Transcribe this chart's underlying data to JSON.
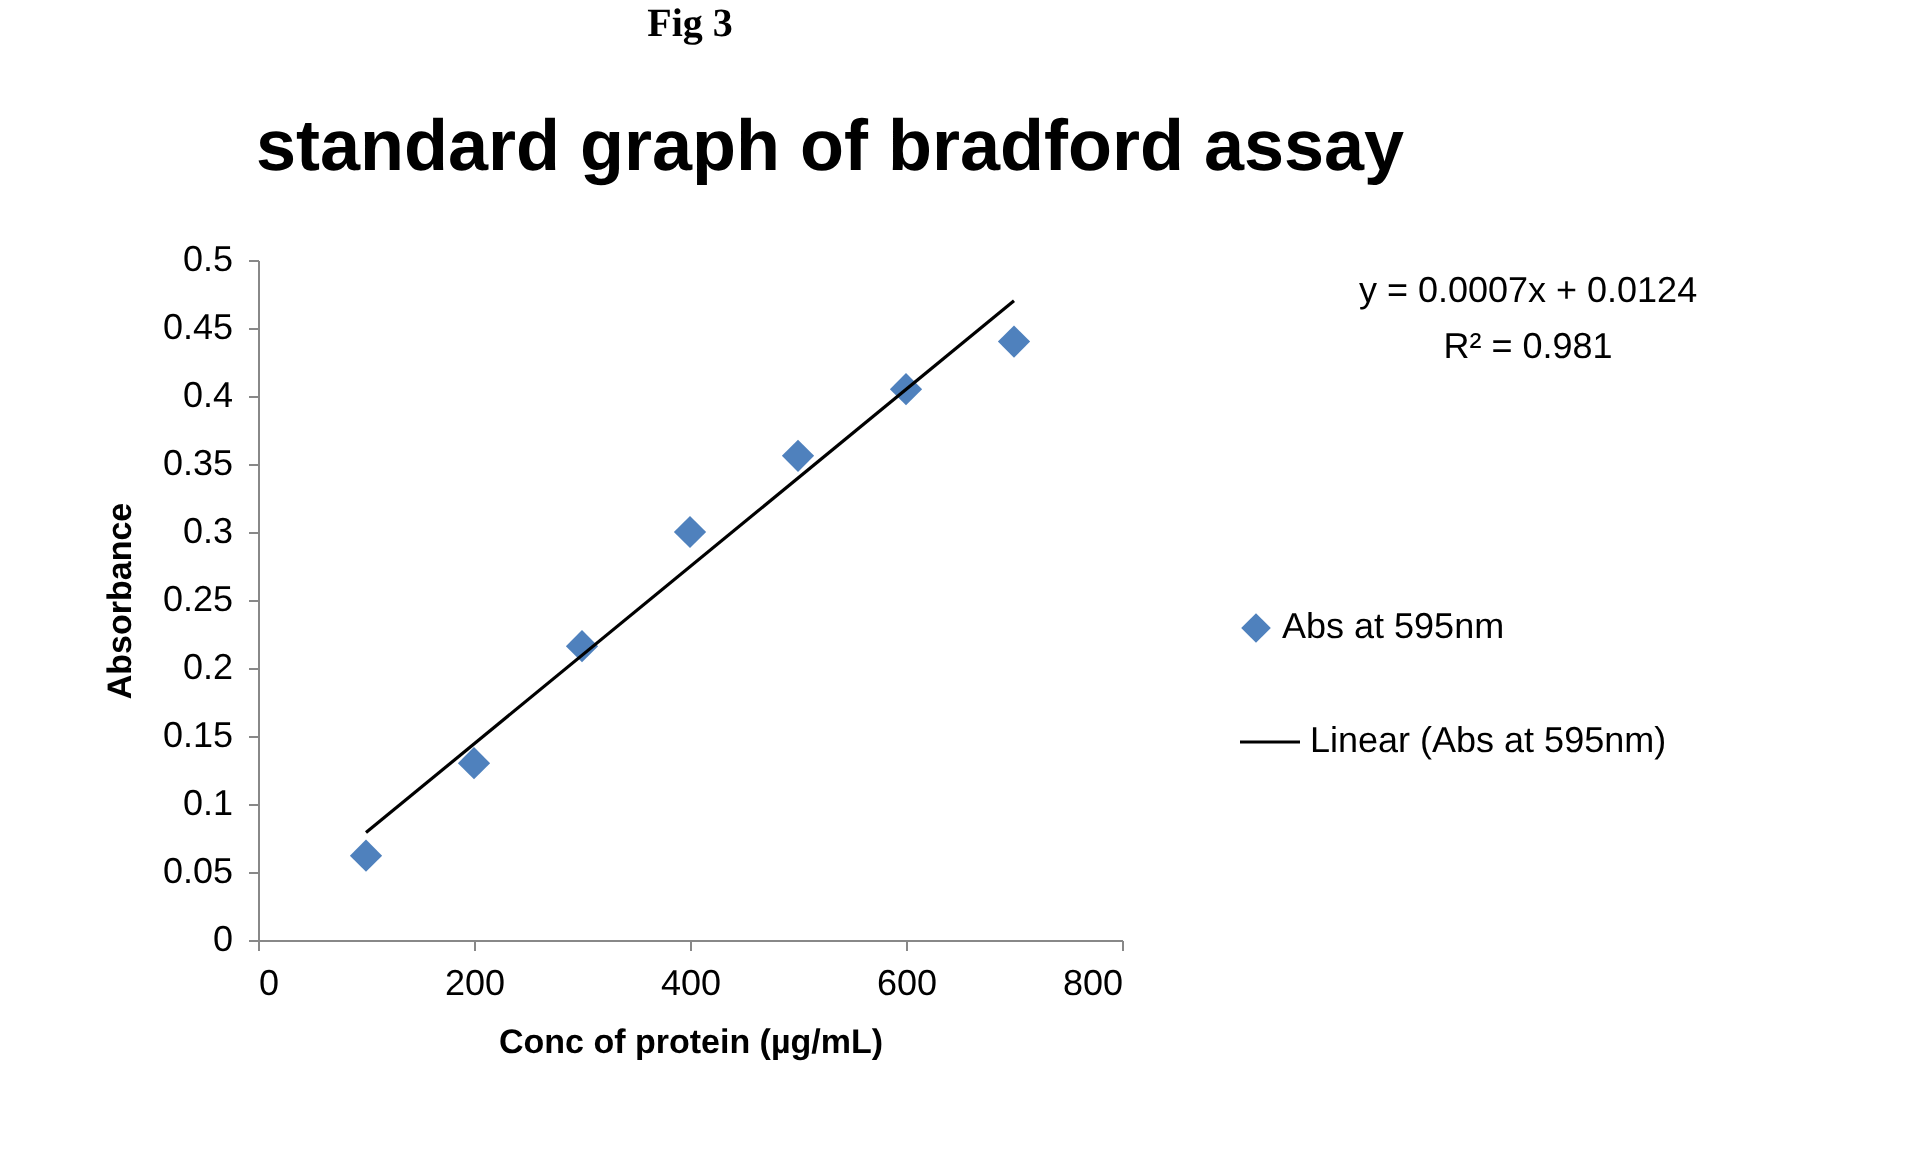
{
  "chart_data": {
    "type": "scatter",
    "title": "standard graph of bradford assay",
    "xlabel": "Conc of protein (µg/mL)",
    "ylabel": "Absorbance",
    "x": [
      100,
      200,
      300,
      400,
      500,
      600,
      700
    ],
    "series": [
      {
        "name": "Abs at 595nm",
        "color": "#4f81bd",
        "marker": "diamond",
        "values": [
          0.062,
          0.13,
          0.216,
          0.3,
          0.356,
          0.405,
          0.44
        ]
      },
      {
        "name": "Linear (Abs at 595nm)",
        "type": "line",
        "color": "#000000",
        "line_style": "solid",
        "x": [
          100,
          700
        ],
        "values": [
          0.079,
          0.47
        ]
      }
    ],
    "xlim": [
      0,
      800
    ],
    "xticks": [
      0,
      200,
      400,
      600,
      800
    ],
    "ylim": [
      0,
      0.5
    ],
    "yticks": [
      0,
      0.05,
      0.1,
      0.15,
      0.2,
      0.25,
      0.3,
      0.35,
      0.4,
      0.45,
      0.5
    ],
    "grid": false,
    "legend": "right",
    "annotations": [
      "Fig 3",
      "y = 0.0007x + 0.0124",
      "R² = 0.981"
    ]
  }
}
